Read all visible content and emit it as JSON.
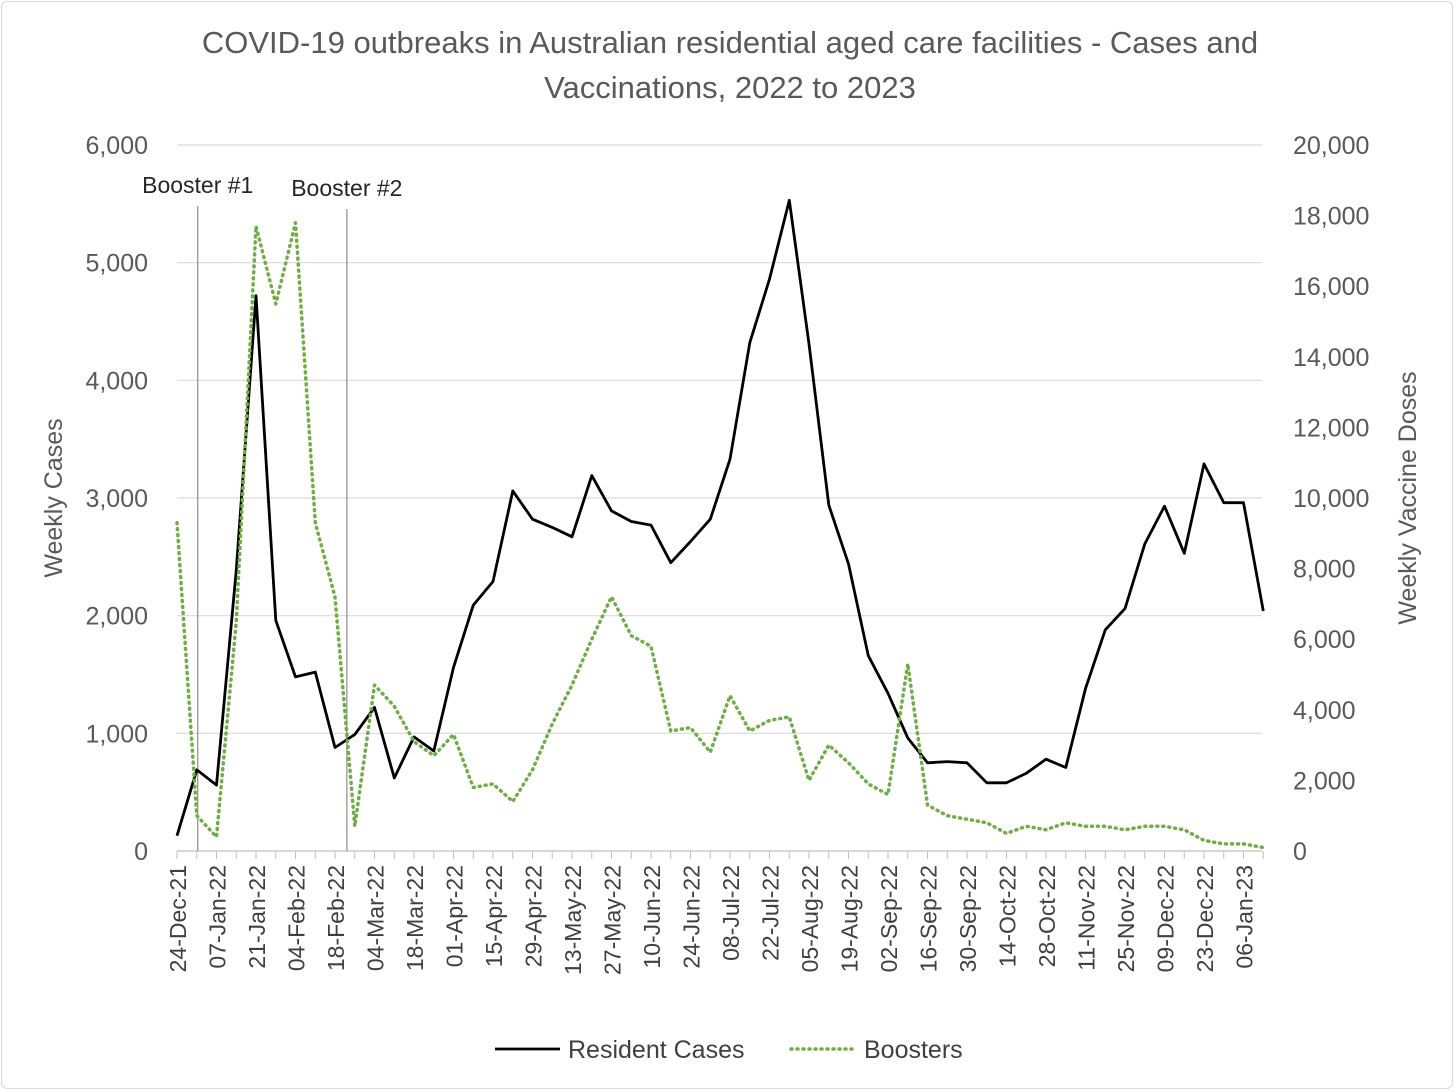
{
  "chart_data": {
    "type": "line",
    "title": "COVID-19 outbreaks in Australian residential aged care facilities - Cases and Vaccinations, 2022 to 2023",
    "y_left_label": "Weekly Cases",
    "y_right_label": "Weekly Vaccine Doses",
    "y_left_range": [
      0,
      6000
    ],
    "y_right_range": [
      0,
      20000
    ],
    "y_left_ticks": [
      "0",
      "1,000",
      "2,000",
      "3,000",
      "4,000",
      "5,000",
      "6,000"
    ],
    "y_right_ticks": [
      "0",
      "2,000",
      "4,000",
      "6,000",
      "8,000",
      "10,000",
      "12,000",
      "14,000",
      "16,000",
      "18,000",
      "20,000"
    ],
    "grid": "horizontal",
    "legend_position": "bottom",
    "x_tick_labels": [
      "24-Dec-21",
      "07-Jan-22",
      "21-Jan-22",
      "04-Feb-22",
      "18-Feb-22",
      "04-Mar-22",
      "18-Mar-22",
      "01-Apr-22",
      "15-Apr-22",
      "29-Apr-22",
      "13-May-22",
      "27-May-22",
      "10-Jun-22",
      "24-Jun-22",
      "08-Jul-22",
      "22-Jul-22",
      "05-Aug-22",
      "19-Aug-22",
      "02-Sep-22",
      "16-Sep-22",
      "30-Sep-22",
      "14-Oct-22",
      "28-Oct-22",
      "11-Nov-22",
      "25-Nov-22",
      "09-Dec-22",
      "23-Dec-22",
      "06-Jan-23"
    ],
    "x_start": "24-Dec-21",
    "x_interval": "weekly",
    "annotations": [
      {
        "text": "Booster #1",
        "x_week": 1.05
      },
      {
        "text": "Booster #2",
        "x_week": 8.6
      }
    ],
    "series": [
      {
        "name": "Resident Cases",
        "axis": "left",
        "color": "#000000",
        "style": "solid",
        "values": [
          130,
          690,
          560,
          2390,
          4720,
          1960,
          1480,
          1520,
          880,
          990,
          1220,
          620,
          970,
          850,
          1560,
          2090,
          2290,
          3060,
          2820,
          2750,
          2670,
          3190,
          2890,
          2800,
          2770,
          2450,
          2630,
          2820,
          3330,
          4320,
          4860,
          5530,
          4310,
          2940,
          2440,
          1660,
          1340,
          960,
          750,
          760,
          750,
          580,
          580,
          660,
          780,
          710,
          1380,
          1880,
          2060,
          2610,
          2930,
          2530,
          3290,
          2960,
          2960,
          2040
        ]
      },
      {
        "name": "Boosters",
        "axis": "right",
        "color": "#70ad47",
        "style": "dotted",
        "values": [
          9300,
          1000,
          400,
          6500,
          17700,
          15500,
          17800,
          9300,
          7200,
          700,
          4700,
          4100,
          3100,
          2700,
          3300,
          1800,
          1900,
          1400,
          2300,
          3600,
          4700,
          6000,
          7200,
          6100,
          5800,
          3400,
          3500,
          2800,
          4400,
          3400,
          3700,
          3800,
          2000,
          3000,
          2500,
          1900,
          1600,
          5300,
          1300,
          1000,
          900,
          800,
          500,
          700,
          600,
          800,
          700,
          700,
          600,
          700,
          700,
          600,
          300,
          200,
          200,
          100
        ]
      }
    ]
  }
}
